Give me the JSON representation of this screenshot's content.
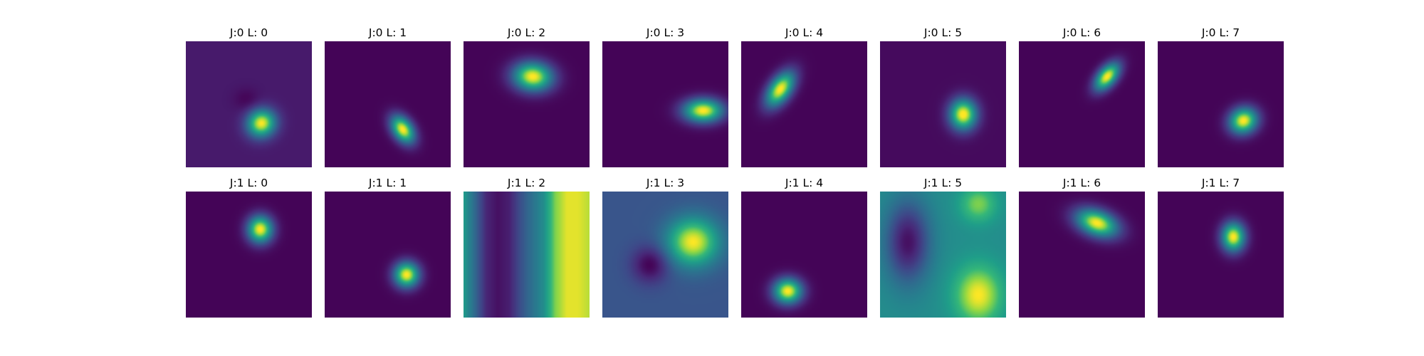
{
  "colormap": "viridis",
  "chart_data": {
    "type": "heatmap",
    "layout": "2 rows x 8 columns grid of image panels",
    "rows": [
      {
        "panels": [
          {
            "title": "J:0 L: 0",
            "background": 0.08,
            "blobs": [
              {
                "cx": 0.6,
                "cy": 0.65,
                "sx": 0.08,
                "sy": 0.075,
                "theta": -30,
                "amp": 0.92
              },
              {
                "cx": 0.48,
                "cy": 0.46,
                "sx": 0.07,
                "sy": 0.06,
                "theta": 0,
                "amp": -0.07
              }
            ]
          },
          {
            "title": "J:0 L: 1",
            "background": 0.01,
            "blobs": [
              {
                "cx": 0.62,
                "cy": 0.7,
                "sx": 0.055,
                "sy": 0.085,
                "theta": -35,
                "amp": 1.0
              }
            ]
          },
          {
            "title": "J:0 L: 2",
            "background": 0.01,
            "blobs": [
              {
                "cx": 0.55,
                "cy": 0.28,
                "sx": 0.11,
                "sy": 0.08,
                "theta": 5,
                "amp": 1.0
              }
            ]
          },
          {
            "title": "J:0 L: 3",
            "background": 0.01,
            "blobs": [
              {
                "cx": 0.8,
                "cy": 0.55,
                "sx": 0.11,
                "sy": 0.065,
                "theta": 0,
                "amp": 1.0
              }
            ]
          },
          {
            "title": "J:0 L: 4",
            "background": 0.01,
            "blobs": [
              {
                "cx": 0.31,
                "cy": 0.38,
                "sx": 0.06,
                "sy": 0.11,
                "theta": 35,
                "amp": 1.0
              }
            ]
          },
          {
            "title": "J:0 L: 5",
            "background": 0.03,
            "blobs": [
              {
                "cx": 0.66,
                "cy": 0.58,
                "sx": 0.075,
                "sy": 0.085,
                "theta": 0,
                "amp": 1.0
              }
            ]
          },
          {
            "title": "J:0 L: 6",
            "background": 0.01,
            "blobs": [
              {
                "cx": 0.7,
                "cy": 0.28,
                "sx": 0.05,
                "sy": 0.09,
                "theta": 40,
                "amp": 1.0
              }
            ]
          },
          {
            "title": "J:0 L: 7",
            "background": 0.01,
            "blobs": [
              {
                "cx": 0.68,
                "cy": 0.63,
                "sx": 0.08,
                "sy": 0.07,
                "theta": -25,
                "amp": 1.0
              }
            ]
          }
        ]
      },
      {
        "panels": [
          {
            "title": "J:1 L: 0",
            "background": 0.01,
            "blobs": [
              {
                "cx": 0.59,
                "cy": 0.3,
                "sx": 0.07,
                "sy": 0.075,
                "theta": 0,
                "amp": 1.0
              }
            ]
          },
          {
            "title": "J:1 L: 1",
            "background": 0.01,
            "blobs": [
              {
                "cx": 0.65,
                "cy": 0.66,
                "sx": 0.07,
                "sy": 0.07,
                "theta": 0,
                "amp": 1.0
              }
            ]
          },
          {
            "title": "J:1 L: 2",
            "mode": "stripes",
            "stripes": {
              "direction": "vertical",
              "profile": [
                0.62,
                0.38,
                0.12,
                0.05,
                0.1,
                0.28,
                0.42,
                0.55,
                0.85,
                0.97,
                0.97,
                0.92
              ]
            }
          },
          {
            "title": "J:1 L: 3",
            "background": 0.3,
            "blobs": [
              {
                "cx": 0.72,
                "cy": 0.4,
                "sx": 0.14,
                "sy": 0.13,
                "theta": 0,
                "amp": 0.7
              },
              {
                "cx": 0.38,
                "cy": 0.58,
                "sx": 0.1,
                "sy": 0.1,
                "theta": 0,
                "amp": -0.3
              }
            ]
          },
          {
            "title": "J:1 L: 4",
            "background": 0.01,
            "blobs": [
              {
                "cx": 0.37,
                "cy": 0.79,
                "sx": 0.08,
                "sy": 0.07,
                "theta": 0,
                "amp": 1.0
              }
            ]
          },
          {
            "title": "J:1 L: 5",
            "background": 0.55,
            "blobs": [
              {
                "cx": 0.78,
                "cy": 0.82,
                "sx": 0.13,
                "sy": 0.16,
                "theta": 0,
                "amp": 0.45
              },
              {
                "cx": 0.78,
                "cy": 0.1,
                "sx": 0.1,
                "sy": 0.1,
                "theta": 0,
                "amp": 0.3
              },
              {
                "cx": 0.22,
                "cy": 0.4,
                "sx": 0.12,
                "sy": 0.22,
                "theta": 0,
                "amp": -0.5
              }
            ]
          },
          {
            "title": "J:1 L: 6",
            "background": 0.01,
            "blobs": [
              {
                "cx": 0.62,
                "cy": 0.25,
                "sx": 0.12,
                "sy": 0.07,
                "theta": 20,
                "amp": 1.0
              }
            ]
          },
          {
            "title": "J:1 L: 7",
            "background": 0.01,
            "blobs": [
              {
                "cx": 0.6,
                "cy": 0.36,
                "sx": 0.065,
                "sy": 0.08,
                "theta": 0,
                "amp": 1.0
              }
            ]
          }
        ]
      }
    ]
  }
}
